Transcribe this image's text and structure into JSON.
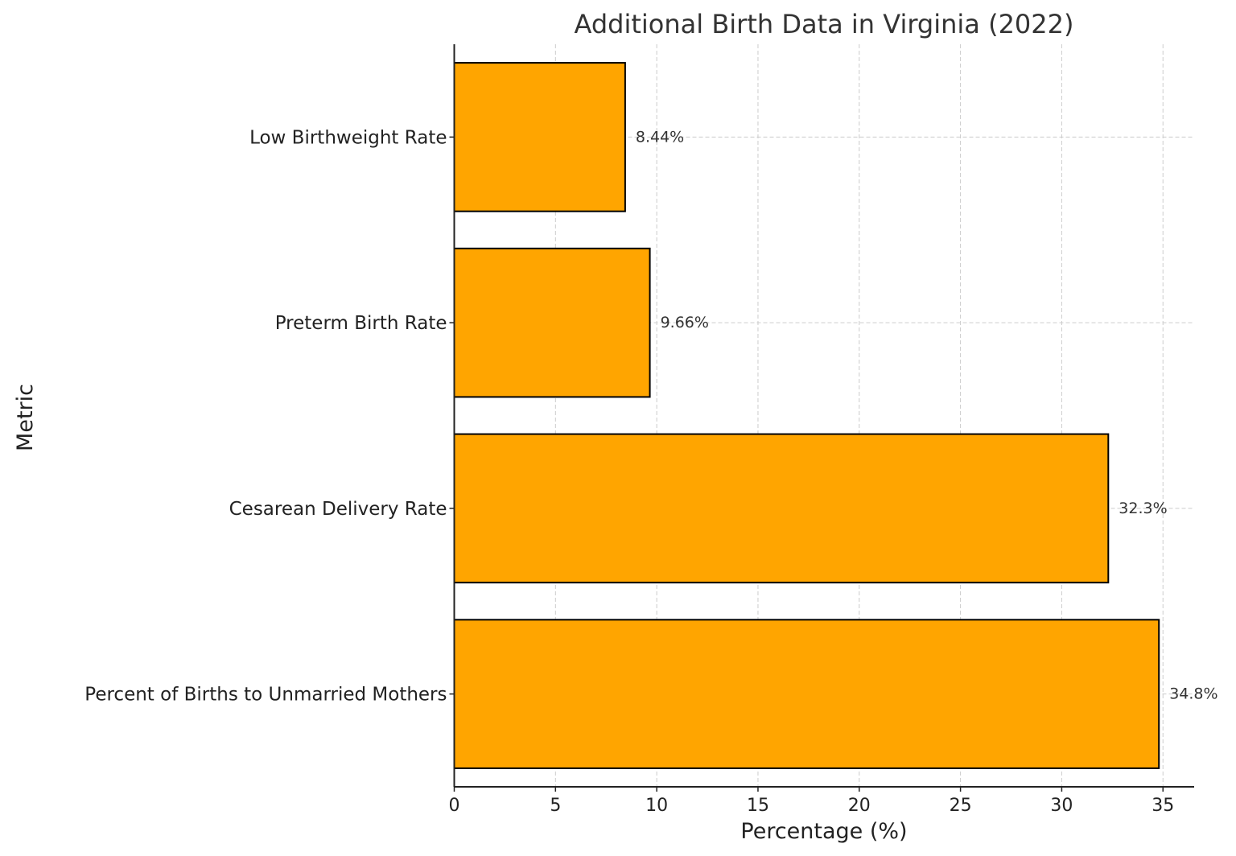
{
  "chart_data": {
    "type": "bar",
    "orientation": "horizontal",
    "title": "Additional Birth Data in Virginia (2022)",
    "xlabel": "Percentage (%)",
    "ylabel": "Metric",
    "categories": [
      "Low Birthweight Rate",
      "Preterm Birth Rate",
      "Cesarean Delivery Rate",
      "Percent of Births to Unmarried Mothers"
    ],
    "values": [
      8.44,
      9.66,
      32.3,
      34.8
    ],
    "data_labels": [
      "8.44%",
      "9.66%",
      "32.3%",
      "34.8%"
    ],
    "xlim": [
      0,
      36.54
    ],
    "xticks": [
      0,
      5,
      10,
      15,
      20,
      25,
      30,
      35
    ],
    "xtick_labels": [
      "0",
      "5",
      "10",
      "15",
      "20",
      "25",
      "30",
      "35"
    ],
    "grid": true,
    "grid_style": "dashed",
    "bar_color": "#FFA500",
    "bar_edge_color": "#000000"
  }
}
